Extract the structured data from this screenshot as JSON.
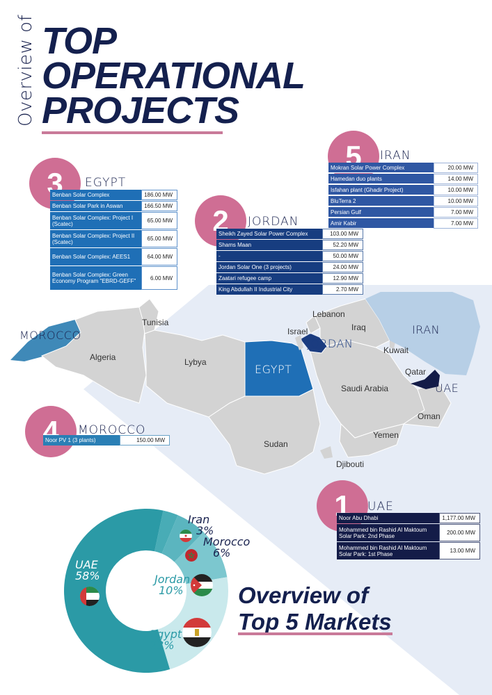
{
  "header": {
    "vertical_prefix": "Overview of",
    "title_lines": [
      "TOP",
      "OPERATIONAL",
      "PROJECTS"
    ]
  },
  "colors": {
    "accent_pink": "#cf6e94",
    "navy": "#14204e",
    "egypt_blue": "#1f6fb6",
    "jordan_navy": "#173d80",
    "uae_navy": "#141c48",
    "iran_light": "#b7cfe6",
    "morocco_teal": "#3f89b8",
    "donut_teal": "#2b9aa6"
  },
  "markets": {
    "iran": {
      "rank": "5",
      "name": "IRAN",
      "projects": [
        {
          "name": "Mokran Solar Power Complex",
          "capacity": "20.00 MW"
        },
        {
          "name": "Hamedan duo plants",
          "capacity": "14.00 MW"
        },
        {
          "name": "Isfahan plant (Ghadir Project)",
          "capacity": "10.00 MW"
        },
        {
          "name": "BluTerra 2",
          "capacity": "10.00 MW"
        },
        {
          "name": "Persian Gulf",
          "capacity": "7.00 MW"
        },
        {
          "name": "Amir Kabir",
          "capacity": "7.00 MW"
        }
      ]
    },
    "egypt": {
      "rank": "3",
      "name": "EGYPT",
      "projects": [
        {
          "name": "Benban Solar Complex",
          "capacity": "186.00 MW"
        },
        {
          "name": "Benban Solar Park in Aswan",
          "capacity": "166.50 MW"
        },
        {
          "name": "Benban Solar Complex: Project I (Scatec)",
          "capacity": "65.00 MW"
        },
        {
          "name": "Benban Solar Complex: Project II (Scatec)",
          "capacity": "65.00 MW"
        },
        {
          "name": "Benban Solar Complex: AEES1",
          "capacity": "64.00 MW"
        },
        {
          "name": "Benban Solar Complex: Green Economy Program \"EBRD-GEFF\"",
          "capacity": "6.00 MW"
        }
      ]
    },
    "jordan": {
      "rank": "2",
      "name": "JORDAN",
      "projects": [
        {
          "name": "Sheikh Zayed Solar Power Complex",
          "capacity": "103.00 MW"
        },
        {
          "name": "Shams Maan",
          "capacity": "52.20 MW"
        },
        {
          "name": "-",
          "capacity": "50.00 MW"
        },
        {
          "name": "Jordan Solar One (3 projects)",
          "capacity": "24.00 MW"
        },
        {
          "name": "Zaatari refugee camp",
          "capacity": "12.90 MW"
        },
        {
          "name": "King Abdullah II Industrial City",
          "capacity": "2.70 MW"
        }
      ]
    },
    "morocco": {
      "rank": "4",
      "name": "MOROCCO",
      "projects": [
        {
          "name": "Noor PV 1 (3 plants)",
          "capacity": "150.00 MW"
        }
      ]
    },
    "uae": {
      "rank": "1",
      "name": "UAE",
      "projects": [
        {
          "name": "Noor Abu Dhabi",
          "capacity": "1,177.00 MW"
        },
        {
          "name": "Mohammed bin Rashid Al Maktoum Solar Park: 2nd Phase",
          "capacity": "200.00 MW"
        },
        {
          "name": "Mohammed bin Rashid Al Maktoum Solar Park: 1st Phase",
          "capacity": "13.00 MW"
        }
      ]
    }
  },
  "map": {
    "labels": [
      "Tunisia",
      "Algeria",
      "Lybya",
      "Lebanon",
      "Israel",
      "Iraq",
      "Kuwait",
      "Qatar",
      "Saudi Arabia",
      "Oman",
      "Yemen",
      "Sudan",
      "Djibouti"
    ],
    "highlight_labels": {
      "morocco": "MOROCCO",
      "egypt": "EGYPT",
      "jordan": "JORDAN",
      "iran": "IRAN",
      "uae": "UAE"
    }
  },
  "donut": {
    "title_line1": "Overview of",
    "title_line2": "Top 5 Markets",
    "segments": [
      {
        "name": "UAE",
        "percent": 58,
        "label": "58%",
        "color": "#2b9aa6"
      },
      {
        "name": "Egypt",
        "percent": 23,
        "label": "23%",
        "color": "#c9e9ec"
      },
      {
        "name": "Jordan",
        "percent": 10,
        "label": "10%",
        "color": "#7cc7cf"
      },
      {
        "name": "Morocco",
        "percent": 6,
        "label": "6%",
        "color": "#5bb5bf"
      },
      {
        "name": "Iran",
        "percent": 3,
        "label": "3%",
        "color": "#48acb6"
      }
    ]
  }
}
